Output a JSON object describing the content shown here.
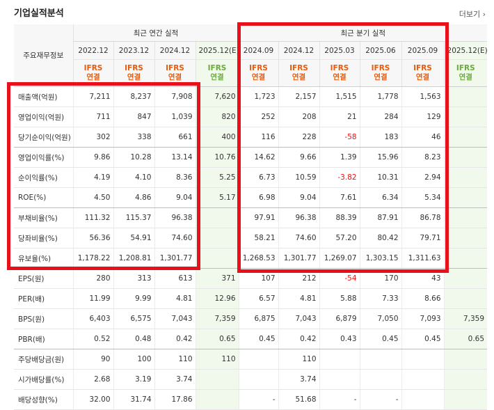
{
  "header": {
    "title": "기업실적분석",
    "more": "더보기 ›"
  },
  "table": {
    "corner": "주요재무정보",
    "groups": [
      "최근 연간 실적",
      "최근 분기 실적"
    ],
    "periods": [
      "2022.12",
      "2023.12",
      "2024.12",
      "2025.12(E)",
      "2024.09",
      "2024.12",
      "2025.03",
      "2025.06",
      "2025.09",
      "2025.12(E)"
    ],
    "basis": [
      "IFRS\n연결",
      "IFRS\n연결",
      "IFRS\n연결",
      "IFRS\n연결",
      "IFRS\n연결",
      "IFRS\n연결",
      "IFRS\n연결",
      "IFRS\n연결",
      "IFRS\n연결",
      "IFRS\n연결"
    ],
    "rows": [
      {
        "label": "매출액(억원)",
        "values": [
          "7,211",
          "8,237",
          "7,908",
          "7,620",
          "1,723",
          "2,157",
          "1,515",
          "1,778",
          "1,563",
          null
        ]
      },
      {
        "label": "영업이익(억원)",
        "values": [
          "711",
          "847",
          "1,039",
          "820",
          "252",
          "208",
          "21",
          "284",
          "129",
          null
        ]
      },
      {
        "label": "당기순이익(억원)",
        "values": [
          "302",
          "338",
          "661",
          "400",
          "116",
          "228",
          "-58",
          "183",
          "46",
          null
        ]
      },
      {
        "label": "영업이익률(%)",
        "values": [
          "9.86",
          "10.28",
          "13.14",
          "10.76",
          "14.62",
          "9.66",
          "1.39",
          "15.96",
          "8.23",
          null
        ]
      },
      {
        "label": "순이익률(%)",
        "values": [
          "4.19",
          "4.10",
          "8.36",
          "5.25",
          "6.73",
          "10.59",
          "-3.82",
          "10.31",
          "2.94",
          null
        ]
      },
      {
        "label": "ROE(%)",
        "values": [
          "4.50",
          "4.86",
          "9.04",
          "5.17",
          "6.98",
          "9.04",
          "7.61",
          "6.34",
          "5.34",
          null
        ]
      },
      {
        "label": "부채비율(%)",
        "values": [
          "111.32",
          "115.37",
          "96.38",
          null,
          "97.91",
          "96.38",
          "88.39",
          "87.91",
          "86.78",
          null
        ]
      },
      {
        "label": "당좌비율(%)",
        "values": [
          "56.36",
          "54.91",
          "74.60",
          null,
          "58.21",
          "74.60",
          "57.20",
          "80.42",
          "79.71",
          null
        ]
      },
      {
        "label": "유보율(%)",
        "values": [
          "1,178.22",
          "1,208.81",
          "1,301.77",
          null,
          "1,268.53",
          "1,301.77",
          "1,269.07",
          "1,303.15",
          "1,311.63",
          null
        ]
      },
      {
        "label": "EPS(원)",
        "values": [
          "280",
          "313",
          "613",
          "371",
          "107",
          "212",
          "-54",
          "170",
          "43",
          null
        ]
      },
      {
        "label": "PER(배)",
        "values": [
          "11.99",
          "9.99",
          "4.81",
          "12.96",
          "6.57",
          "4.81",
          "5.88",
          "7.33",
          "8.66",
          null
        ]
      },
      {
        "label": "BPS(원)",
        "values": [
          "6,403",
          "6,575",
          "7,043",
          "7,359",
          "6,875",
          "7,043",
          "6,879",
          "7,050",
          "7,093",
          "7,359"
        ]
      },
      {
        "label": "PBR(배)",
        "values": [
          "0.52",
          "0.48",
          "0.42",
          "0.65",
          "0.45",
          "0.42",
          "0.43",
          "0.45",
          "0.45",
          "0.65"
        ]
      },
      {
        "label": "주당배당금(원)",
        "values": [
          "90",
          "100",
          "110",
          "110",
          null,
          "110",
          null,
          null,
          null,
          null
        ]
      },
      {
        "label": "시가배당률(%)",
        "values": [
          "2.68",
          "3.19",
          "3.74",
          null,
          null,
          "3.74",
          null,
          null,
          null,
          null
        ]
      },
      {
        "label": "배당성향(%)",
        "values": [
          "32.00",
          "31.74",
          "17.86",
          null,
          "-",
          "51.68",
          "-",
          "-",
          null,
          null
        ]
      }
    ]
  }
}
